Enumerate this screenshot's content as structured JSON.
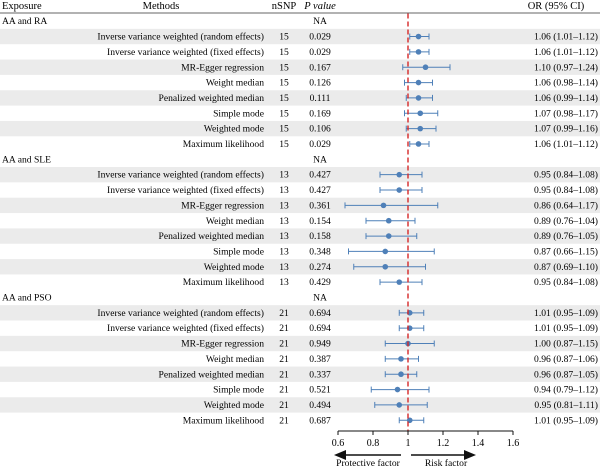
{
  "headers": {
    "exposure": "Exposure",
    "methods": "Methods",
    "nsnp": "nSNP",
    "pvalue": "P value",
    "or": "OR (95% CI)"
  },
  "chart_data": {
    "type": "forest",
    "reference_line": 1,
    "xlim": [
      0.6,
      1.6
    ],
    "xticks": [
      "0.6",
      "0.8",
      "1",
      "1.2",
      "1.4",
      "1.6"
    ],
    "direction_labels": {
      "left": "Protective factor",
      "right": "Risk factor"
    },
    "colors": {
      "point": "#4f80b8",
      "ci": "#4f80b8",
      "reference": "#d62828",
      "stripe": "#ebebeb"
    },
    "groups": [
      {
        "label": "AA and RA",
        "pvalue_note": "NA",
        "rows": [
          {
            "method": "Inverse variance weighted (random effects)",
            "nsnp": "15",
            "p": "0.029",
            "or": 1.06,
            "lo": 1.01,
            "hi": 1.12,
            "or_text": "1.06 (1.01–1.12)"
          },
          {
            "method": "Inverse variance weighted (fixed effects)",
            "nsnp": "15",
            "p": "0.029",
            "or": 1.06,
            "lo": 1.01,
            "hi": 1.12,
            "or_text": "1.06 (1.01–1.12)"
          },
          {
            "method": "MR-Egger regression",
            "nsnp": "15",
            "p": "0.167",
            "or": 1.1,
            "lo": 0.97,
            "hi": 1.24,
            "or_text": "1.10 (0.97–1.24)"
          },
          {
            "method": "Weight median",
            "nsnp": "15",
            "p": "0.126",
            "or": 1.06,
            "lo": 0.98,
            "hi": 1.14,
            "or_text": "1.06 (0.98–1.14)"
          },
          {
            "method": "Penalized weighted median",
            "nsnp": "15",
            "p": "0.111",
            "or": 1.06,
            "lo": 0.99,
            "hi": 1.14,
            "or_text": "1.06 (0.99–1.14)"
          },
          {
            "method": "Simple mode",
            "nsnp": "15",
            "p": "0.169",
            "or": 1.07,
            "lo": 0.98,
            "hi": 1.17,
            "or_text": "1.07 (0.98–1.17)"
          },
          {
            "method": "Weighted mode",
            "nsnp": "15",
            "p": "0.106",
            "or": 1.07,
            "lo": 0.99,
            "hi": 1.16,
            "or_text": "1.07 (0.99–1.16)"
          },
          {
            "method": "Maximum likelihood",
            "nsnp": "15",
            "p": "0.029",
            "or": 1.06,
            "lo": 1.01,
            "hi": 1.12,
            "or_text": "1.06 (1.01–1.12)"
          }
        ]
      },
      {
        "label": "AA and SLE",
        "pvalue_note": "NA",
        "rows": [
          {
            "method": "Inverse variance weighted (random effects)",
            "nsnp": "13",
            "p": "0.427",
            "or": 0.95,
            "lo": 0.84,
            "hi": 1.08,
            "or_text": "0.95 (0.84–1.08)"
          },
          {
            "method": "Inverse variance weighted (fixed effects)",
            "nsnp": "13",
            "p": "0.427",
            "or": 0.95,
            "lo": 0.84,
            "hi": 1.08,
            "or_text": "0.95 (0.84–1.08)"
          },
          {
            "method": "MR-Egger regression",
            "nsnp": "13",
            "p": "0.361",
            "or": 0.86,
            "lo": 0.64,
            "hi": 1.17,
            "or_text": "0.86 (0.64–1.17)"
          },
          {
            "method": "Weight median",
            "nsnp": "13",
            "p": "0.154",
            "or": 0.89,
            "lo": 0.76,
            "hi": 1.04,
            "or_text": "0.89 (0.76–1.04)"
          },
          {
            "method": "Penalized weighted median",
            "nsnp": "13",
            "p": "0.158",
            "or": 0.89,
            "lo": 0.76,
            "hi": 1.05,
            "or_text": "0.89 (0.76–1.05)"
          },
          {
            "method": "Simple mode",
            "nsnp": "13",
            "p": "0.348",
            "or": 0.87,
            "lo": 0.66,
            "hi": 1.15,
            "or_text": "0.87 (0.66–1.15)"
          },
          {
            "method": "Weighted mode",
            "nsnp": "13",
            "p": "0.274",
            "or": 0.87,
            "lo": 0.69,
            "hi": 1.1,
            "or_text": "0.87 (0.69–1.10)"
          },
          {
            "method": "Maximum likelihood",
            "nsnp": "13",
            "p": "0.429",
            "or": 0.95,
            "lo": 0.84,
            "hi": 1.08,
            "or_text": "0.95 (0.84–1.08)"
          }
        ]
      },
      {
        "label": "AA and PSO",
        "pvalue_note": "NA",
        "rows": [
          {
            "method": "Inverse variance weighted (random effects)",
            "nsnp": "21",
            "p": "0.694",
            "or": 1.01,
            "lo": 0.95,
            "hi": 1.09,
            "or_text": "1.01 (0.95–1.09)"
          },
          {
            "method": "Inverse variance weighted (fixed effects)",
            "nsnp": "21",
            "p": "0.694",
            "or": 1.01,
            "lo": 0.95,
            "hi": 1.09,
            "or_text": "1.01 (0.95–1.09)"
          },
          {
            "method": "MR-Egger regression",
            "nsnp": "21",
            "p": "0.949",
            "or": 1.0,
            "lo": 0.87,
            "hi": 1.15,
            "or_text": "1.00 (0.87–1.15)"
          },
          {
            "method": "Weight median",
            "nsnp": "21",
            "p": "0.387",
            "or": 0.96,
            "lo": 0.87,
            "hi": 1.06,
            "or_text": "0.96 (0.87–1.06)"
          },
          {
            "method": "Penalized weighted median",
            "nsnp": "21",
            "p": "0.337",
            "or": 0.96,
            "lo": 0.87,
            "hi": 1.05,
            "or_text": "0.96 (0.87–1.05)"
          },
          {
            "method": "Simple mode",
            "nsnp": "21",
            "p": "0.521",
            "or": 0.94,
            "lo": 0.79,
            "hi": 1.12,
            "or_text": "0.94 (0.79–1.12)"
          },
          {
            "method": "Weighted mode",
            "nsnp": "21",
            "p": "0.494",
            "or": 0.95,
            "lo": 0.81,
            "hi": 1.11,
            "or_text": "0.95 (0.81–1.11)"
          },
          {
            "method": "Maximum likelihood",
            "nsnp": "21",
            "p": "0.687",
            "or": 1.01,
            "lo": 0.95,
            "hi": 1.09,
            "or_text": "1.01 (0.95–1.09)"
          }
        ]
      }
    ]
  }
}
